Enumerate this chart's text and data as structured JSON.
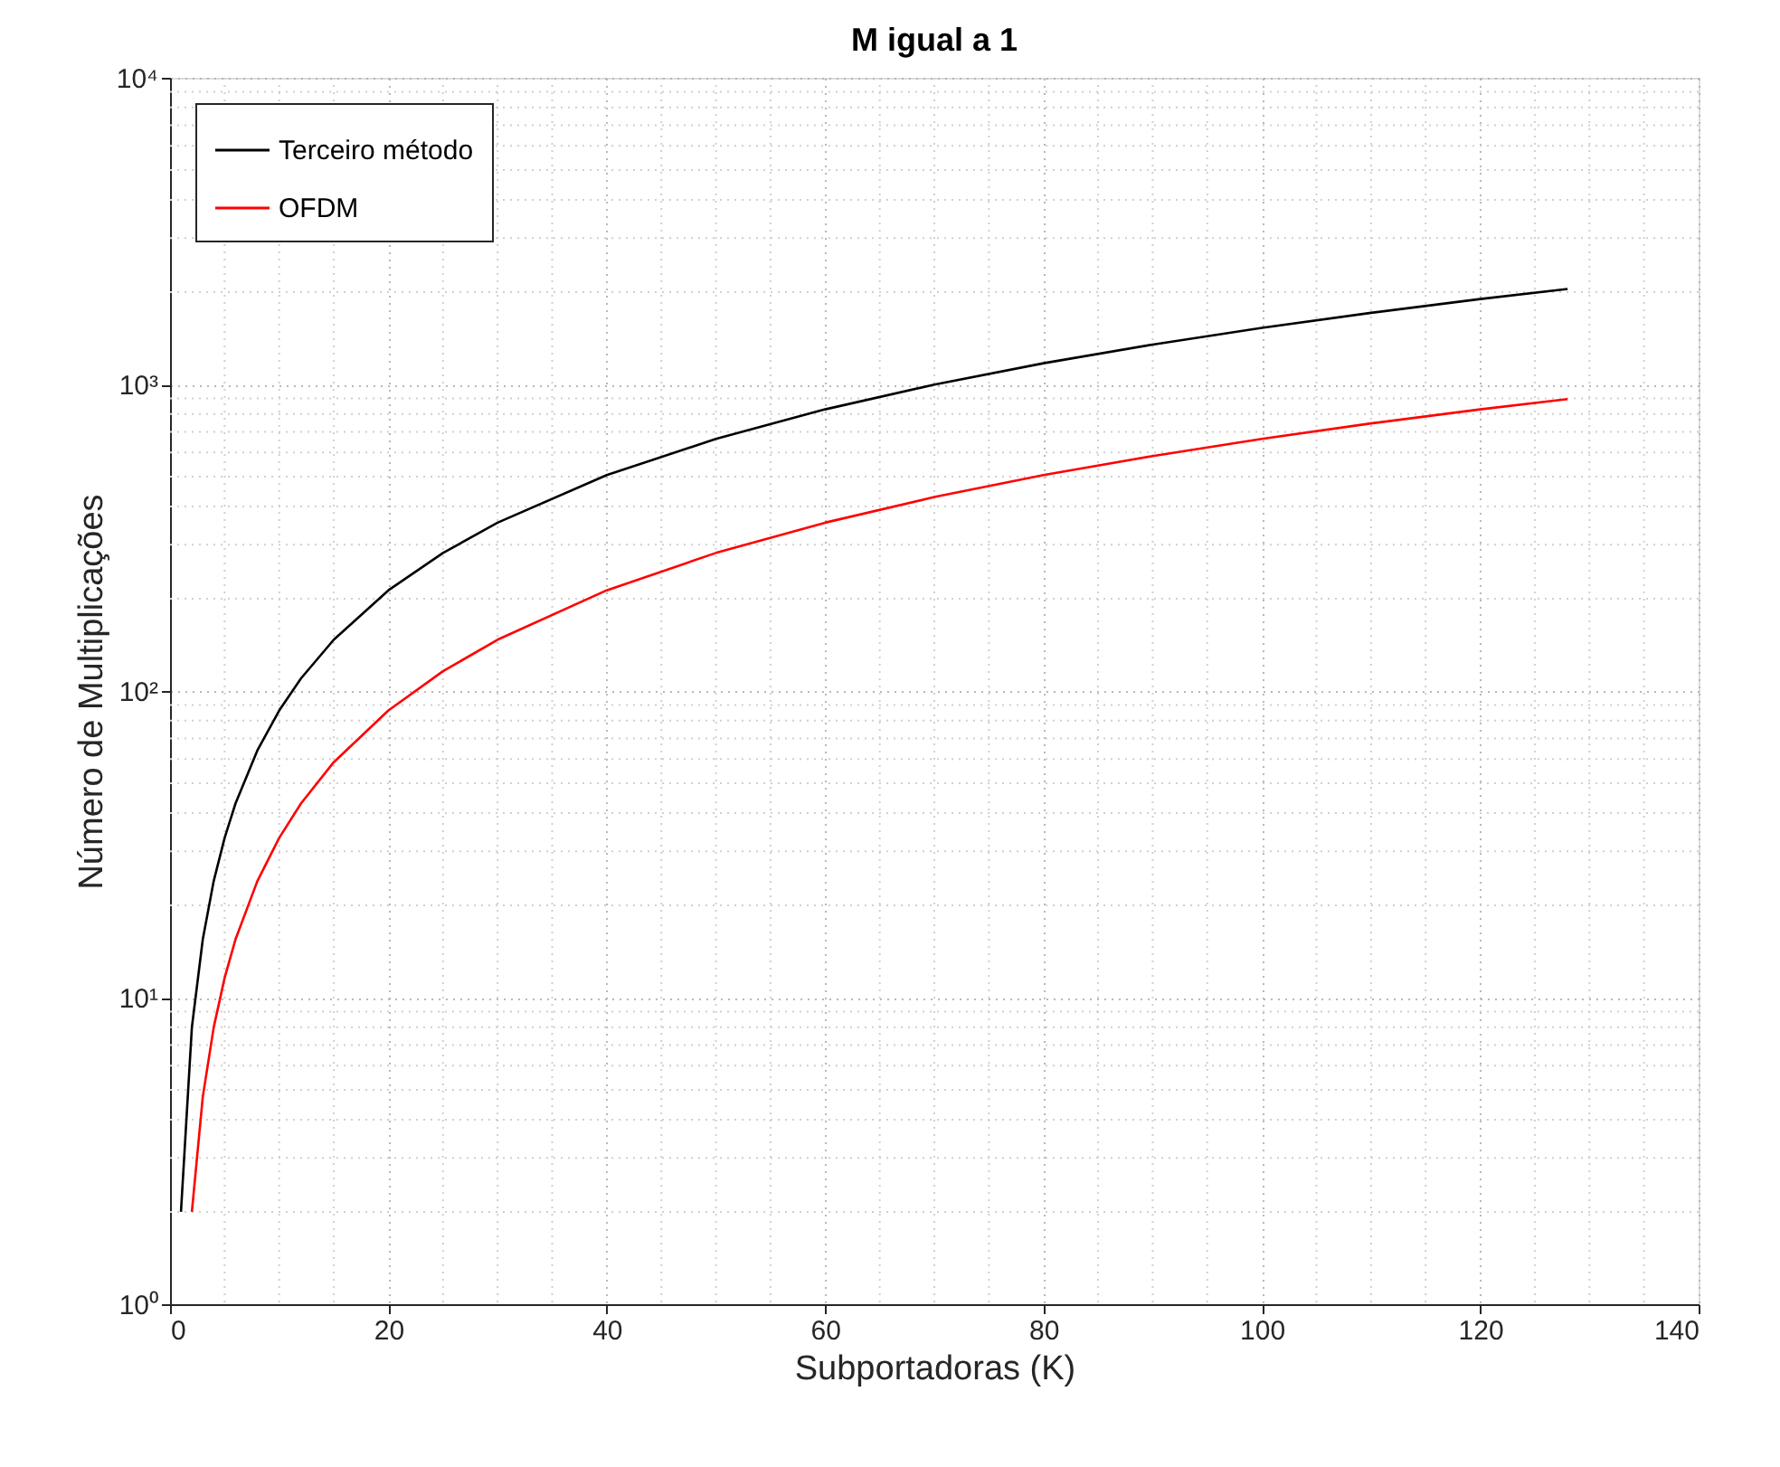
{
  "chart_data": {
    "type": "line",
    "title": "M igual a 1",
    "xlabel": "Subportadoras (K)",
    "ylabel": "Número de Multiplicações",
    "series": [
      {
        "name": "Terceiro método",
        "color": "#000000",
        "x": [
          1,
          2,
          3,
          4,
          5,
          6,
          8,
          10,
          12,
          15,
          20,
          25,
          30,
          40,
          50,
          60,
          70,
          80,
          90,
          100,
          110,
          120,
          128
        ],
        "values": [
          2,
          8,
          15.5,
          24,
          33.2,
          43.0,
          64,
          86.4,
          110,
          147,
          213,
          282,
          354,
          506,
          664,
          829,
          998,
          1172,
          1349,
          1529,
          1712,
          1898,
          2048
        ]
      },
      {
        "name": "OFDM",
        "color": "#ff0000",
        "x": [
          2,
          3,
          4,
          5,
          6,
          8,
          10,
          12,
          15,
          20,
          25,
          30,
          40,
          50,
          60,
          70,
          80,
          90,
          100,
          110,
          120,
          128
        ],
        "values": [
          2,
          4.75,
          8,
          11.6,
          15.5,
          24,
          33.2,
          43.0,
          58.6,
          86.4,
          116,
          147,
          213,
          282,
          354,
          429,
          506,
          584,
          664,
          746,
          829,
          896
        ]
      }
    ],
    "xlim": [
      0,
      140
    ],
    "xticks": [
      0,
      20,
      40,
      60,
      80,
      100,
      120,
      140
    ],
    "ylim": [
      1,
      10000
    ],
    "yticks": [
      {
        "value": 1,
        "label": "10⁰"
      },
      {
        "value": 10,
        "label": "10¹"
      },
      {
        "value": 100,
        "label": "10²"
      },
      {
        "value": 1000,
        "label": "10³"
      },
      {
        "value": 10000,
        "label": "10⁴"
      }
    ],
    "log": "y",
    "grid": true,
    "legend": "top left",
    "marker": "none",
    "line_style": "solid"
  }
}
